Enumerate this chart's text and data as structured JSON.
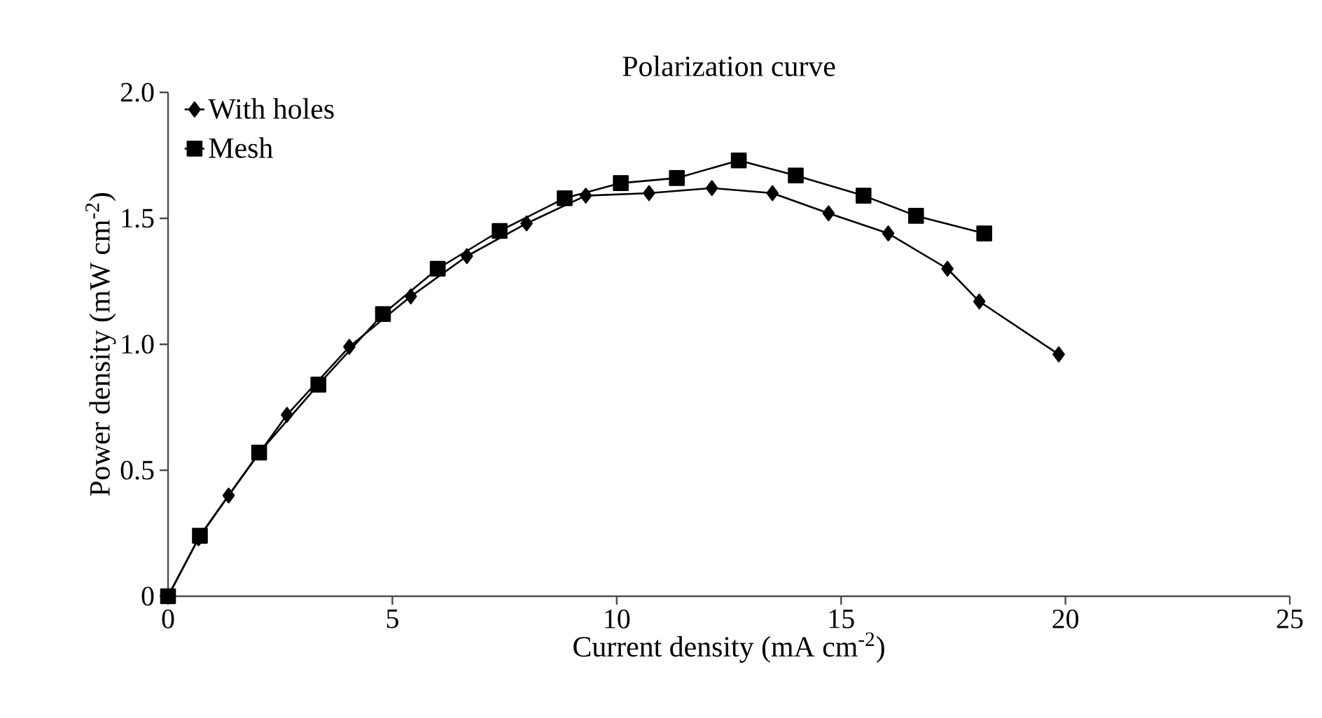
{
  "chart_data": {
    "type": "line",
    "title": "Polarization curve",
    "xlabel": "Current density (mA cm$^{-2}$)",
    "ylabel": "Power density (mW cm$^{-2}$)",
    "series": [
      {
        "name": "With holes",
        "color": "#000000",
        "marker": "diamond",
        "x": [
          0,
          0.68,
          1.35,
          2.65,
          4.04,
          5.41,
          6.66,
          7.99,
          9.31,
          10.72,
          12.12,
          13.47,
          14.72,
          16.05,
          17.37,
          18.08,
          19.85
        ],
        "values": [
          0,
          0.23,
          0.4,
          0.72,
          0.99,
          1.19,
          1.35,
          1.48,
          1.59,
          1.6,
          1.62,
          1.6,
          1.52,
          1.44,
          1.3,
          1.17,
          0.96
        ]
      },
      {
        "name": "Mesh",
        "color": "#000000",
        "marker": "square",
        "x": [
          0,
          0.71,
          2.03,
          3.35,
          4.79,
          6.01,
          7.39,
          8.84,
          10.09,
          11.34,
          12.72,
          13.99,
          15.5,
          16.67,
          18.19
        ],
        "values": [
          0,
          0.24,
          0.57,
          0.84,
          1.12,
          1.3,
          1.45,
          1.58,
          1.64,
          1.66,
          1.73,
          1.67,
          1.59,
          1.51,
          1.44
        ]
      }
    ],
    "xlim": [
      0,
      25
    ],
    "ylim": [
      0,
      2.0
    ],
    "xticks": [
      0,
      5,
      10,
      15,
      20,
      25
    ],
    "yticks": [
      0,
      {
        "value": 0.5,
        "label": "0.5"
      },
      {
        "value": 1.0,
        "label": "1.0"
      },
      {
        "value": 1.5,
        "label": "1.5"
      },
      {
        "value": 2.0,
        "label": "2.0"
      }
    ],
    "grid": false,
    "legend": "top left",
    "line_style": "solid"
  }
}
